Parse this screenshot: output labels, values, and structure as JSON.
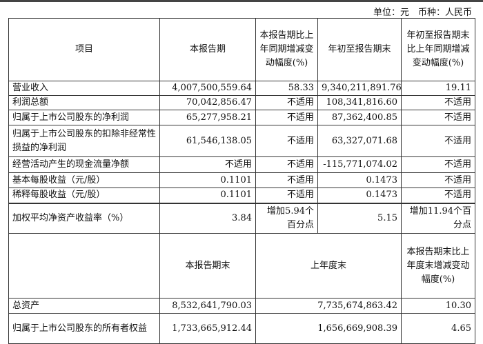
{
  "unit_line": "单位：元　币种：人民币",
  "header1": [
    "项目",
    "本报告期",
    "本报告期比上年同期增减变动幅度(%)",
    "年初至报告期末",
    "年初至报告期末比上年同期增减变动幅度(%)"
  ],
  "rows": [
    [
      "营业收入",
      "4,007,500,559.64",
      "58.33",
      "9,340,211,891.76",
      "19.11"
    ],
    [
      "利润总额",
      "70,042,856.47",
      "不适用",
      "108,341,816.60",
      "不适用"
    ],
    [
      "归属于上市公司股东的净利润",
      "65,277,958.21",
      "不适用",
      "87,362,400.85",
      "不适用"
    ],
    [
      "归属于上市公司股东的扣除非经常性损益的净利润",
      "61,546,138.05",
      "不适用",
      "63,327,071.68",
      "不适用"
    ],
    [
      "经营活动产生的现金流量净额",
      "不适用",
      "不适用",
      "-115,771,074.02",
      "不适用"
    ],
    [
      "基本每股收益（元/股）",
      "0.1101",
      "不适用",
      "0.1473",
      "不适用"
    ],
    [
      "稀释每股收益（元/股）",
      "0.1101",
      "不适用",
      "0.1473",
      "不适用"
    ],
    [
      "加权平均净资产收益率（%）",
      "3.84",
      "增加5.94个百分点",
      "5.15",
      "增加11.94个百分点"
    ]
  ],
  "header2": [
    "",
    "本报告期末",
    "上年度末",
    "本报告期末比上年度末增减变动幅度(%)"
  ],
  "rows2": [
    [
      "总资产",
      "8,532,641,790.03",
      "7,735,674,863.42",
      "10.30"
    ],
    [
      "归属于上市公司股东的所有者权益",
      "1,733,665,912.44",
      "1,656,669,908.39",
      "4.65"
    ]
  ]
}
